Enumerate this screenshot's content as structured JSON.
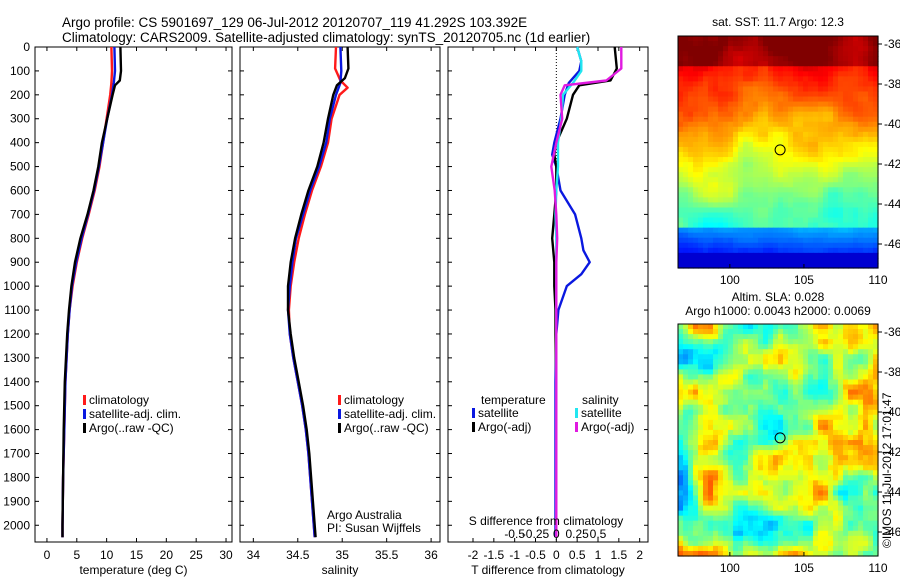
{
  "header": {
    "title_line1": "Argo profile: CS 5901697_129 06-Jul-2012 20120707_119 41.292S 103.392E",
    "title_line2": "Climatology: CARS2009. Satellite-adjusted climatology: synTS_20120705.nc (1d earlier)"
  },
  "colors": {
    "climatology": "#ff1a1a",
    "satellite": "#0a18e0",
    "argo": "#000000",
    "salinity_satellite": "#22e6f0",
    "salinity_argo": "#e01ae0"
  },
  "credits": {
    "line1": "Argo Australia",
    "line2": "PI: Susan Wijffels",
    "side_stamp": "©IMOS 11-Jul-2012 17:01:47"
  },
  "chart_data": [
    {
      "id": "temperature",
      "type": "line",
      "xlabel": "temperature (deg C)",
      "ylabel": "",
      "xlim": [
        -2,
        31
      ],
      "ylim": [
        2070,
        0
      ],
      "xticks": [
        "0",
        "5",
        "10",
        "15",
        "20",
        "25",
        "30"
      ],
      "xtick_values": [
        0,
        5,
        10,
        15,
        20,
        25,
        30
      ],
      "yticks": [
        "0",
        "100",
        "200",
        "300",
        "400",
        "500",
        "600",
        "700",
        "800",
        "900",
        "1000",
        "1100",
        "1200",
        "1300",
        "1400",
        "1500",
        "1600",
        "1700",
        "1800",
        "1900",
        "2000"
      ],
      "ytick_values": [
        0,
        100,
        200,
        300,
        400,
        500,
        600,
        700,
        800,
        900,
        1000,
        1100,
        1200,
        1300,
        1400,
        1500,
        1600,
        1700,
        1800,
        1900,
        2000
      ],
      "legend": [
        "climatology",
        "satellite-adj. clim.",
        "Argo(..raw -QC)"
      ],
      "series": [
        {
          "name": "climatology",
          "color_key": "climatology",
          "depth": [
            0,
            100,
            150,
            200,
            300,
            400,
            500,
            600,
            700,
            800,
            900,
            1000,
            1100,
            1200,
            1300,
            1400,
            1600,
            1800,
            2000,
            2050
          ],
          "values": [
            10.8,
            10.9,
            10.8,
            10.6,
            10.0,
            9.4,
            8.8,
            8.0,
            7.0,
            5.9,
            5.0,
            4.3,
            3.8,
            3.5,
            3.3,
            3.1,
            2.9,
            2.7,
            2.6,
            2.6
          ]
        },
        {
          "name": "satellite-adj. clim.",
          "color_key": "satellite",
          "depth": [
            0,
            100,
            150,
            200,
            300,
            400,
            500,
            600,
            700,
            800,
            900,
            1000,
            1100,
            1200,
            1300,
            1400,
            1600,
            1800,
            2000,
            2050
          ],
          "values": [
            11.3,
            11.4,
            11.2,
            10.9,
            10.1,
            9.4,
            8.7,
            7.9,
            6.9,
            5.8,
            4.9,
            4.2,
            3.8,
            3.5,
            3.3,
            3.1,
            2.9,
            2.7,
            2.6,
            2.6
          ]
        },
        {
          "name": "Argo(..raw -QC)",
          "color_key": "argo",
          "depth": [
            0,
            100,
            140,
            160,
            200,
            300,
            400,
            500,
            600,
            700,
            800,
            900,
            1000,
            1100,
            1200,
            1300,
            1400,
            1600,
            1800,
            2000,
            2050
          ],
          "values": [
            12.3,
            12.4,
            12.2,
            11.4,
            11.0,
            10.1,
            9.2,
            8.6,
            7.8,
            6.8,
            5.6,
            4.7,
            4.1,
            3.7,
            3.4,
            3.2,
            3.0,
            2.8,
            2.7,
            2.6,
            2.6
          ]
        }
      ]
    },
    {
      "id": "salinity",
      "type": "line",
      "xlabel": "salinity",
      "xlim": [
        33.85,
        36.1
      ],
      "ylim": [
        2070,
        0
      ],
      "xticks": [
        "34",
        "34.5",
        "35",
        "35.5",
        "36"
      ],
      "xtick_values": [
        34,
        34.5,
        35,
        35.5,
        36
      ],
      "legend": [
        "climatology",
        "satellite-adj. clim.",
        "Argo(..raw -QC)"
      ],
      "series": [
        {
          "name": "climatology",
          "color_key": "climatology",
          "depth": [
            0,
            90,
            140,
            170,
            200,
            300,
            400,
            500,
            600,
            700,
            800,
            900,
            1000,
            1100,
            1200,
            1300,
            1400,
            1500,
            1600,
            1700,
            1800,
            1900,
            2000,
            2050
          ],
          "values": [
            34.93,
            34.92,
            34.98,
            35.06,
            34.97,
            34.88,
            34.84,
            34.76,
            34.66,
            34.58,
            34.51,
            34.46,
            34.42,
            34.4,
            34.41,
            34.45,
            34.5,
            34.55,
            34.59,
            34.62,
            34.64,
            34.66,
            34.68,
            34.69
          ]
        },
        {
          "name": "satellite-adj. clim.",
          "color_key": "satellite",
          "depth": [
            0,
            100,
            150,
            200,
            300,
            400,
            500,
            600,
            700,
            800,
            900,
            1000,
            1100,
            1200,
            1300,
            1400,
            1500,
            1600,
            1700,
            1800,
            1900,
            2000,
            2050
          ],
          "values": [
            34.98,
            34.99,
            34.98,
            34.93,
            34.86,
            34.82,
            34.74,
            34.64,
            34.56,
            34.48,
            34.44,
            34.41,
            34.39,
            34.41,
            34.45,
            34.5,
            34.55,
            34.59,
            34.62,
            34.64,
            34.66,
            34.68,
            34.69
          ]
        },
        {
          "name": "Argo(..raw -QC)",
          "color_key": "argo",
          "depth": [
            0,
            90,
            130,
            160,
            200,
            300,
            400,
            500,
            600,
            700,
            800,
            900,
            1000,
            1100,
            1200,
            1300,
            1400,
            1500,
            1600,
            1700,
            1800,
            1900,
            2000,
            2050
          ],
          "values": [
            35.06,
            35.07,
            35.03,
            34.94,
            34.9,
            34.84,
            34.79,
            34.72,
            34.62,
            34.54,
            34.47,
            34.42,
            34.39,
            34.39,
            34.42,
            34.46,
            34.51,
            34.56,
            34.6,
            34.63,
            34.65,
            34.67,
            34.69,
            34.7
          ]
        }
      ]
    },
    {
      "id": "difference",
      "type": "line",
      "xlabel": "T difference from climatology",
      "xlabel2": "S difference from climatology",
      "xlim": [
        -2.6,
        2.2
      ],
      "ylim": [
        2070,
        0
      ],
      "xticks": [
        "-2",
        "-1.5",
        "-1",
        "-0.5",
        "0",
        "0.5",
        "1",
        "1.5",
        "2"
      ],
      "xtick_values": [
        -2,
        -1.5,
        -1,
        -0.5,
        0,
        0.5,
        1,
        1.5,
        2
      ],
      "xticks_top": [
        "-0.5",
        "-0.25",
        "0",
        "0.25",
        "0.5"
      ],
      "xtick_top_values": [
        -0.5,
        -0.25,
        0,
        0.25,
        0.5
      ],
      "salinity_scale": 2,
      "legend_headers": [
        "temperature",
        "salinity"
      ],
      "legend": [
        "satellite",
        "Argo(-adj)",
        "satellite",
        "Argo(-adj)"
      ],
      "series": [
        {
          "name": "satellite",
          "quantity": "temperature",
          "color_key": "satellite",
          "depth": [
            0,
            60,
            100,
            150,
            200,
            300,
            400,
            450,
            500,
            600,
            700,
            800,
            850,
            900,
            950,
            1000,
            1100,
            1200,
            1400,
            1600,
            2000,
            2050
          ],
          "values": [
            0.5,
            0.6,
            0.55,
            0.3,
            0.2,
            0.1,
            -0.05,
            -0.1,
            0.0,
            0.1,
            0.45,
            0.6,
            0.65,
            0.8,
            0.6,
            0.25,
            0.05,
            0.0,
            -0.02,
            -0.02,
            -0.02,
            -0.02
          ]
        },
        {
          "name": "Argo(-adj)",
          "quantity": "temperature",
          "color_key": "argo",
          "depth": [
            0,
            90,
            140,
            160,
            200,
            300,
            400,
            450,
            500,
            600,
            700,
            800,
            900,
            1000,
            1100,
            1200,
            1400,
            1600,
            2000,
            2050
          ],
          "values": [
            1.4,
            1.45,
            1.3,
            0.55,
            0.4,
            0.25,
            0.0,
            -0.05,
            0.0,
            0.0,
            -0.05,
            -0.1,
            -0.05,
            -0.05,
            -0.02,
            -0.02,
            0.0,
            0.0,
            0.0,
            0.0
          ]
        },
        {
          "name": "satellite",
          "quantity": "salinity",
          "color_key": "salinity_satellite",
          "depth": [
            0,
            60,
            100,
            150,
            200,
            300,
            400,
            500,
            600,
            700,
            800,
            900,
            1000,
            1100,
            1200,
            1400,
            1600,
            2000,
            2050
          ],
          "values": [
            0.25,
            0.3,
            0.3,
            0.2,
            0.08,
            0.06,
            0.02,
            0.02,
            0.0,
            -0.01,
            0.0,
            0.0,
            0.0,
            0.0,
            0.0,
            0.0,
            0.0,
            0.0,
            0.0
          ]
        },
        {
          "name": "Argo(-adj)",
          "quantity": "salinity",
          "color_key": "salinity_argo",
          "depth": [
            0,
            90,
            140,
            160,
            200,
            300,
            400,
            500,
            600,
            700,
            800,
            900,
            1000,
            1100,
            1200,
            1400,
            1600,
            2000,
            2050
          ],
          "values": [
            0.78,
            0.78,
            0.6,
            0.1,
            0.05,
            0.07,
            0.0,
            -0.06,
            -0.02,
            0.0,
            0.01,
            0.0,
            0.0,
            0.0,
            0.0,
            0.0,
            0.0,
            0.0,
            0.0
          ]
        }
      ]
    },
    {
      "id": "sst_map",
      "type": "heatmap",
      "title": "sat. SST: 11.7 Argo: 12.3",
      "xlim": [
        96.5,
        110
      ],
      "ylim": [
        -47.2,
        -35.6
      ],
      "xticks": [
        "100",
        "105",
        "110"
      ],
      "xtick_values": [
        100,
        105,
        110
      ],
      "yticks": [
        "-36",
        "-38",
        "-40",
        "-42",
        "-44",
        "-46"
      ],
      "ytick_values": [
        -36,
        -38,
        -40,
        -42,
        -44,
        -46
      ],
      "marker": {
        "lon": 103.392,
        "lat": -41.292
      }
    },
    {
      "id": "sla_map",
      "type": "heatmap",
      "title": "Altim. SLA: 0.028",
      "subtitle": "Argo h1000: 0.0043 h2000: 0.0069",
      "xlim": [
        96.5,
        110
      ],
      "ylim": [
        -47.2,
        -35.6
      ],
      "xticks": [
        "100",
        "105",
        "110"
      ],
      "xtick_values": [
        100,
        105,
        110
      ],
      "yticks": [
        "-36",
        "-38",
        "-40",
        "-42",
        "-44",
        "-46"
      ],
      "ytick_values": [
        -36,
        -38,
        -40,
        -42,
        -44,
        -46
      ],
      "marker": {
        "lon": 103.392,
        "lat": -41.292
      }
    }
  ]
}
